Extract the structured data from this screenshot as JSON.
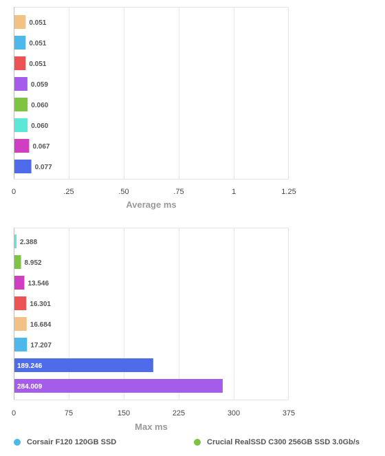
{
  "colors": {
    "corsair": "#4db8ec",
    "crucial_c300": "#7cc442",
    "red": "#ec5355",
    "orange": "#f2c184",
    "purple": "#a55cea",
    "teal": "#5ce8d7",
    "magenta": "#cf3fc0",
    "blue": "#4e6cea"
  },
  "chart_data": [
    {
      "type": "bar",
      "orientation": "horizontal",
      "xlabel": "Average ms",
      "xlim": [
        0,
        1.25
      ],
      "ticks": [
        0,
        0.25,
        0.5,
        0.75,
        1,
        1.25
      ],
      "tick_labels": [
        "0",
        ".25",
        ".50",
        ".75",
        "1",
        "1.25"
      ],
      "grid": true,
      "bars": [
        {
          "value": 0.051,
          "label": "0.051",
          "color": "#f2c184"
        },
        {
          "value": 0.051,
          "label": "0.051",
          "color": "#4db8ec"
        },
        {
          "value": 0.051,
          "label": "0.051",
          "color": "#ec5355"
        },
        {
          "value": 0.059,
          "label": "0.059",
          "color": "#a55cea"
        },
        {
          "value": 0.06,
          "label": "0.060",
          "color": "#7cc442"
        },
        {
          "value": 0.06,
          "label": "0.060",
          "color": "#5ce8d7"
        },
        {
          "value": 0.067,
          "label": "0.067",
          "color": "#cf3fc0"
        },
        {
          "value": 0.077,
          "label": "0.077",
          "color": "#4e6cea"
        }
      ]
    },
    {
      "type": "bar",
      "orientation": "horizontal",
      "xlabel": "Max ms",
      "xlim": [
        0,
        375
      ],
      "ticks": [
        0,
        75,
        150,
        225,
        300,
        375
      ],
      "tick_labels": [
        "0",
        "75",
        "150",
        "225",
        "300",
        "375"
      ],
      "grid": true,
      "bars": [
        {
          "value": 2.388,
          "label": "2.388",
          "color": "#5ce8d7"
        },
        {
          "value": 8.952,
          "label": "8.952",
          "color": "#7cc442"
        },
        {
          "value": 13.546,
          "label": "13.546",
          "color": "#cf3fc0"
        },
        {
          "value": 16.301,
          "label": "16.301",
          "color": "#ec5355"
        },
        {
          "value": 16.684,
          "label": "16.684",
          "color": "#f2c184"
        },
        {
          "value": 17.207,
          "label": "17.207",
          "color": "#4db8ec"
        },
        {
          "value": 189.246,
          "label": "189.246",
          "color": "#4e6cea"
        },
        {
          "value": 284.009,
          "label": "284.009",
          "color": "#a55cea"
        }
      ]
    }
  ],
  "legend": {
    "placement": "bottom",
    "items": [
      {
        "name": "Corsair F120 120GB SSD",
        "color": "#4db8ec"
      },
      {
        "name": "Crucial RealSSD C300 256GB SSD 3.0Gb/s",
        "color": "#7cc442"
      }
    ]
  }
}
